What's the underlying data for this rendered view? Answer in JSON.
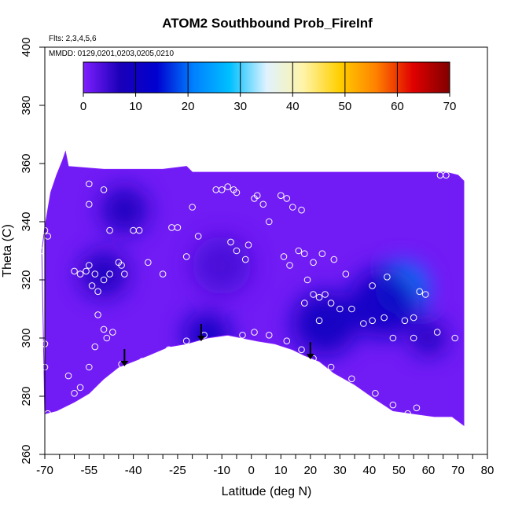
{
  "chart_data": {
    "type": "heatmap",
    "title": "ATOM2 Southbound Prob_FireInf",
    "annotations": [
      "Flts: 2,3,4,5,6",
      "MMDD: 0129,0201,0203,0205,0210"
    ],
    "xlabel": "Latitude (deg N)",
    "ylabel": "Theta (C)",
    "xlim": [
      -70,
      80
    ],
    "ylim": [
      260,
      400
    ],
    "x_tick_labels": [
      "-70",
      "-55",
      "-40",
      "-25",
      "-10",
      "0",
      "10",
      "20",
      "30",
      "40",
      "50",
      "60",
      "70",
      "80"
    ],
    "x_tick_values": [
      -70,
      -55,
      -40,
      -25,
      -10,
      0,
      10,
      20,
      30,
      40,
      50,
      60,
      70,
      80
    ],
    "x_minor_step": 5,
    "y_tick_labels": [
      "260",
      "280",
      "300",
      "320",
      "340",
      "360",
      "380",
      "400"
    ],
    "y_tick_values": [
      260,
      280,
      300,
      320,
      340,
      360,
      380,
      400
    ],
    "colorbar": {
      "min": 0,
      "max": 70,
      "tick_labels": [
        "0",
        "10",
        "20",
        "30",
        "40",
        "50",
        "60",
        "70"
      ],
      "tick_values": [
        0,
        10,
        20,
        30,
        40,
        50,
        60,
        70
      ],
      "colors": [
        "#7f1fff",
        "#1a00b8",
        "#0000d0",
        "#0080ff",
        "#00c0ff",
        "#dff2ff",
        "#fff4a8",
        "#ffcf00",
        "#ff8000",
        "#e00000",
        "#800000"
      ]
    },
    "top_boundary": [
      [
        -71,
        330
      ],
      [
        -70,
        338
      ],
      [
        -68,
        350
      ],
      [
        -66,
        356
      ],
      [
        -64,
        361
      ],
      [
        -63,
        364
      ],
      [
        -62,
        359
      ],
      [
        -50,
        358
      ],
      [
        -30,
        358
      ],
      [
        -22,
        359
      ],
      [
        -20,
        357
      ],
      [
        0,
        357
      ],
      [
        20,
        357
      ],
      [
        40,
        357
      ],
      [
        60,
        357
      ],
      [
        66,
        357
      ],
      [
        70,
        356
      ],
      [
        72,
        354
      ]
    ],
    "bottom_boundary": [
      [
        72,
        270
      ],
      [
        68,
        273
      ],
      [
        62,
        273
      ],
      [
        55,
        274
      ],
      [
        48,
        275
      ],
      [
        42,
        279
      ],
      [
        35,
        284
      ],
      [
        28,
        288
      ],
      [
        23,
        292
      ],
      [
        18,
        294
      ],
      [
        14,
        296
      ],
      [
        8,
        298
      ],
      [
        2,
        299
      ],
      [
        -3,
        300
      ],
      [
        -8,
        301
      ],
      [
        -15,
        300
      ],
      [
        -22,
        298
      ],
      [
        -28,
        297
      ],
      [
        -35,
        294
      ],
      [
        -40,
        292
      ],
      [
        -45,
        290
      ],
      [
        -50,
        286
      ],
      [
        -55,
        281
      ],
      [
        -60,
        278
      ],
      [
        -66,
        275
      ],
      [
        -70,
        274
      ]
    ],
    "field_hotspots": [
      {
        "lat": 51,
        "theta": 317,
        "value": 22,
        "radius": 9
      },
      {
        "lat": 45,
        "theta": 312,
        "value": 10,
        "radius": 12
      },
      {
        "lat": 25,
        "theta": 305,
        "value": 9,
        "radius": 11
      },
      {
        "lat": -43,
        "theta": 344,
        "value": 8,
        "radius": 8
      },
      {
        "lat": -50,
        "theta": 322,
        "value": 8,
        "radius": 8
      },
      {
        "lat": -15,
        "theta": 301,
        "value": 10,
        "radius": 8
      },
      {
        "lat": 60,
        "theta": 300,
        "value": 8,
        "radius": 6
      },
      {
        "lat": -10,
        "theta": 325,
        "value": 4,
        "radius": 10
      }
    ],
    "field_baseline": 1,
    "observation_points": [
      [
        -71,
        330
      ],
      [
        -70,
        337
      ],
      [
        -69,
        335
      ],
      [
        -70,
        298
      ],
      [
        -70,
        290
      ],
      [
        -69,
        274
      ],
      [
        -60,
        323
      ],
      [
        -58,
        322
      ],
      [
        -56,
        323
      ],
      [
        -55,
        325
      ],
      [
        -53,
        322
      ],
      [
        -52,
        308
      ],
      [
        -50,
        303
      ],
      [
        -49,
        300
      ],
      [
        -47,
        302
      ],
      [
        -53,
        297
      ],
      [
        -55,
        290
      ],
      [
        -58,
        283
      ],
      [
        -60,
        281
      ],
      [
        -62,
        287
      ],
      [
        -55,
        346
      ],
      [
        -55,
        353
      ],
      [
        -50,
        351
      ],
      [
        -48,
        337
      ],
      [
        -54,
        318
      ],
      [
        -52,
        316
      ],
      [
        -50,
        320
      ],
      [
        -48,
        322
      ],
      [
        -45,
        326
      ],
      [
        -44,
        325
      ],
      [
        -43,
        322
      ],
      [
        -40,
        337
      ],
      [
        -38,
        337
      ],
      [
        -35,
        326
      ],
      [
        -30,
        322
      ],
      [
        -27,
        338
      ],
      [
        -25,
        338
      ],
      [
        -22,
        328
      ],
      [
        -20,
        345
      ],
      [
        -18,
        335
      ],
      [
        -44,
        291
      ],
      [
        -37,
        292
      ],
      [
        -28,
        296
      ],
      [
        -22,
        299
      ],
      [
        -16,
        301
      ],
      [
        -12,
        351
      ],
      [
        -10,
        351
      ],
      [
        -8,
        352
      ],
      [
        -6,
        351
      ],
      [
        -5,
        350
      ],
      [
        -7,
        333
      ],
      [
        -5,
        330
      ],
      [
        -2,
        327
      ],
      [
        -1,
        332
      ],
      [
        1,
        348
      ],
      [
        2,
        349
      ],
      [
        4,
        346
      ],
      [
        6,
        340
      ],
      [
        -3,
        301
      ],
      [
        1,
        302
      ],
      [
        6,
        301
      ],
      [
        10,
        349
      ],
      [
        12,
        348
      ],
      [
        14,
        345
      ],
      [
        17,
        344
      ],
      [
        11,
        328
      ],
      [
        13,
        325
      ],
      [
        16,
        330
      ],
      [
        18,
        329
      ],
      [
        19,
        320
      ],
      [
        21,
        326
      ],
      [
        24,
        329
      ],
      [
        28,
        327
      ],
      [
        18,
        312
      ],
      [
        21,
        315
      ],
      [
        23,
        314
      ],
      [
        25,
        315
      ],
      [
        27,
        312
      ],
      [
        30,
        310
      ],
      [
        34,
        310
      ],
      [
        12,
        299
      ],
      [
        17,
        296
      ],
      [
        21,
        293
      ],
      [
        27,
        290
      ],
      [
        34,
        286
      ],
      [
        23,
        306
      ],
      [
        32,
        322
      ],
      [
        41,
        318
      ],
      [
        46,
        321
      ],
      [
        38,
        305
      ],
      [
        41,
        306
      ],
      [
        45,
        307
      ],
      [
        48,
        300
      ],
      [
        52,
        306
      ],
      [
        55,
        307
      ],
      [
        57,
        316
      ],
      [
        59,
        315
      ],
      [
        55,
        300
      ],
      [
        42,
        281
      ],
      [
        48,
        277
      ],
      [
        53,
        274
      ],
      [
        56,
        276
      ],
      [
        64,
        356
      ],
      [
        66,
        356
      ],
      [
        69,
        300
      ],
      [
        63,
        302
      ]
    ],
    "arrows_lat": [
      -43,
      -17,
      20
    ],
    "grid": false,
    "legend": "colorbar top, inside plot"
  }
}
